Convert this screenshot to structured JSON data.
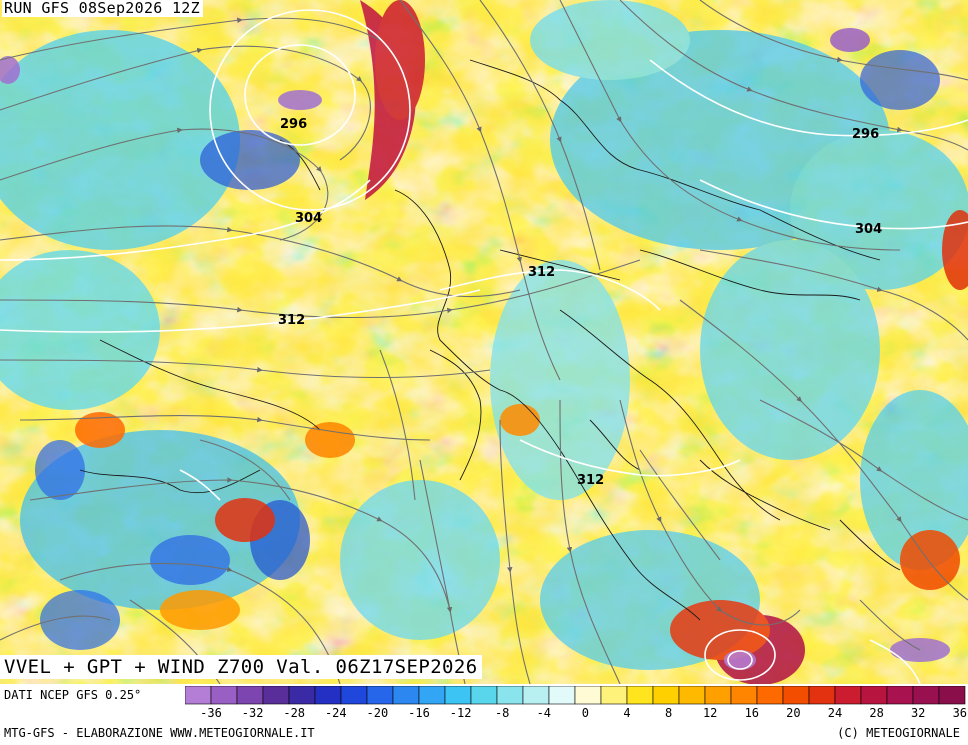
{
  "header": {
    "run_label": "RUN GFS 08Sep2026 12Z"
  },
  "title": "VVEL + GPT + WIND Z700 Val. 06Z17SEP2026",
  "footer": {
    "data_source": "DATI NCEP GFS 0.25°",
    "credit_left": "MTG-GFS - ELABORAZIONE WWW.METEOGIORNALE.IT",
    "credit_right": "(C) METEOGIORNALE"
  },
  "contour_labels": [
    {
      "text": "296",
      "id": "contour-296-west"
    },
    {
      "text": "304",
      "id": "contour-304-west"
    },
    {
      "text": "312",
      "id": "contour-312-west"
    },
    {
      "text": "312",
      "id": "contour-312-center"
    },
    {
      "text": "312",
      "id": "contour-312-south"
    },
    {
      "text": "296",
      "id": "contour-296-east"
    },
    {
      "text": "304",
      "id": "contour-304-east"
    }
  ],
  "legend": {
    "colors": [
      "#b57ed6",
      "#9a5fc4",
      "#7d45b0",
      "#5a2e9a",
      "#3b2aa6",
      "#2430c4",
      "#1f47dc",
      "#2566ea",
      "#2c88f0",
      "#32a6f4",
      "#3cc4f4",
      "#5ad6ec",
      "#8ae4ee",
      "#b8f0f2",
      "#e2fafa",
      "#fffbd4",
      "#fff27a",
      "#ffe41e",
      "#ffd000",
      "#ffba00",
      "#ffa000",
      "#ff8400",
      "#ff6a00",
      "#f34e00",
      "#e23210",
      "#cc1c30",
      "#b81440",
      "#a8124e",
      "#981050",
      "#8a0e4a"
    ],
    "ticks": [
      "-36",
      "-32",
      "-28",
      "-24",
      "-20",
      "-16",
      "-12",
      "-8",
      "-4",
      "0",
      "4",
      "8",
      "12",
      "16",
      "20",
      "24",
      "28",
      "32",
      "36"
    ]
  }
}
